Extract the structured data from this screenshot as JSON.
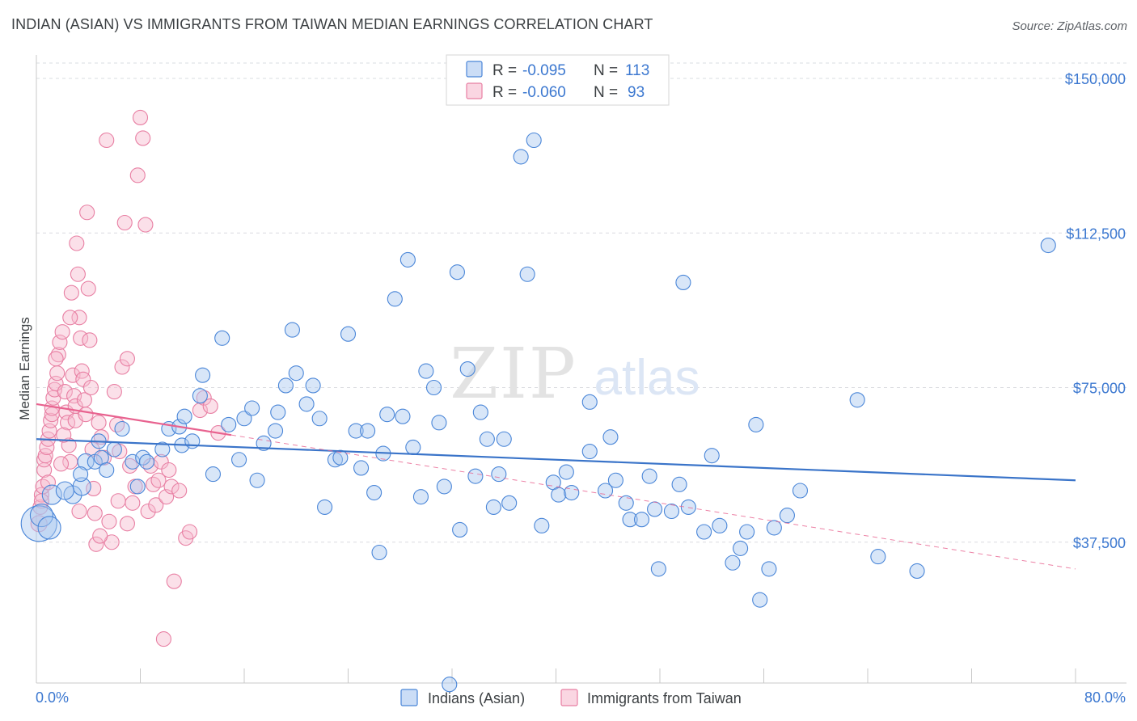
{
  "header": {
    "title": "INDIAN (ASIAN) VS IMMIGRANTS FROM TAIWAN MEDIAN EARNINGS CORRELATION CHART",
    "source": "Source: ZipAtlas.com"
  },
  "watermark": {
    "zip": "ZIP",
    "atlas": "atlas"
  },
  "colors": {
    "blue": "#4a86d8",
    "blue_fill": "rgba(168,199,240,0.45)",
    "blue_line": "#3a74c9",
    "pink": "#e87fa3",
    "pink_fill": "rgba(246,186,206,0.45)",
    "pink_line": "#e8628f",
    "grid": "#dadce0",
    "tick_text": "#3c78d0"
  },
  "chart_data": {
    "type": "scatter",
    "title": "INDIAN (ASIAN) VS IMMIGRANTS FROM TAIWAN MEDIAN EARNINGS CORRELATION CHART",
    "xlabel": "",
    "ylabel": "Median Earnings",
    "xlim": [
      0,
      80
    ],
    "ylim": [
      0,
      160000
    ],
    "x_tick_labels": [
      "0.0%",
      "80.0%"
    ],
    "y_ticks": [
      37500,
      75000,
      112500,
      150000
    ],
    "y_tick_labels": [
      "$37,500",
      "$75,000",
      "$112,500",
      "$150,000"
    ],
    "legend": {
      "position": "top-center",
      "rows": [
        {
          "r_label": "R = ",
          "r_value": "-0.095",
          "n_label": "N = ",
          "n_value": "113"
        },
        {
          "r_label": "R = ",
          "r_value": "-0.060",
          "n_label": "N = ",
          "n_value": "93"
        }
      ]
    },
    "bottom_legend": [
      "Indians (Asian)",
      "Immigrants from Taiwan"
    ],
    "series": [
      {
        "name": "Indians (Asian)",
        "trend": {
          "x": [
            0,
            80
          ],
          "y": [
            62500,
            52500
          ],
          "style": "solid"
        },
        "points": [
          [
            0.2,
            42000,
            22
          ],
          [
            0.4,
            44000,
            14
          ],
          [
            1.2,
            49000,
            12
          ],
          [
            2.8,
            49000,
            11
          ],
          [
            3.5,
            51000,
            11
          ],
          [
            3.8,
            57000,
            10
          ],
          [
            3.4,
            54000,
            9
          ],
          [
            4.5,
            57000,
            9
          ],
          [
            5.0,
            58000,
            9
          ],
          [
            4.8,
            62000,
            9
          ],
          [
            5.4,
            55000,
            9
          ],
          [
            6.6,
            65000,
            9
          ],
          [
            7.4,
            57000,
            9
          ],
          [
            8.2,
            58000,
            9
          ],
          [
            8.5,
            57000,
            9
          ],
          [
            7.8,
            51000,
            9
          ],
          [
            9.7,
            60000,
            9
          ],
          [
            10.2,
            65000,
            9
          ],
          [
            11.0,
            65500,
            9
          ],
          [
            11.4,
            68000,
            9
          ],
          [
            11.2,
            61000,
            9
          ],
          [
            12.0,
            62000,
            9
          ],
          [
            12.6,
            73000,
            9
          ],
          [
            12.8,
            78000,
            9
          ],
          [
            13.6,
            54000,
            9
          ],
          [
            14.3,
            87000,
            9
          ],
          [
            14.8,
            66000,
            9
          ],
          [
            15.6,
            57500,
            9
          ],
          [
            16.0,
            67500,
            9
          ],
          [
            16.6,
            70000,
            9
          ],
          [
            17.0,
            52500,
            9
          ],
          [
            17.5,
            61500,
            9
          ],
          [
            18.4,
            64500,
            9
          ],
          [
            18.6,
            69000,
            9
          ],
          [
            19.2,
            75500,
            9
          ],
          [
            19.7,
            89000,
            9
          ],
          [
            20.0,
            78500,
            9
          ],
          [
            20.8,
            71000,
            9
          ],
          [
            21.3,
            75500,
            9
          ],
          [
            21.8,
            67500,
            9
          ],
          [
            22.2,
            46000,
            9
          ],
          [
            23.0,
            57500,
            9
          ],
          [
            23.4,
            58000,
            9
          ],
          [
            24.0,
            88000,
            9
          ],
          [
            24.6,
            64500,
            9
          ],
          [
            25.0,
            55500,
            9
          ],
          [
            25.5,
            64500,
            9
          ],
          [
            26.0,
            49500,
            9
          ],
          [
            26.4,
            35000,
            9
          ],
          [
            26.7,
            59000,
            9
          ],
          [
            27.0,
            68500,
            9
          ],
          [
            27.6,
            96500,
            9
          ],
          [
            28.2,
            68000,
            9
          ],
          [
            28.6,
            106000,
            9
          ],
          [
            29.0,
            60500,
            9
          ],
          [
            29.6,
            48500,
            9
          ],
          [
            30.0,
            79000,
            9
          ],
          [
            30.6,
            75000,
            9
          ],
          [
            31.0,
            66500,
            9
          ],
          [
            31.4,
            51000,
            9
          ],
          [
            31.8,
            3000,
            9
          ],
          [
            32.4,
            103000,
            9
          ],
          [
            32.6,
            40500,
            9
          ],
          [
            33.2,
            79500,
            9
          ],
          [
            33.8,
            53500,
            9
          ],
          [
            34.2,
            69000,
            9
          ],
          [
            34.7,
            62500,
            9
          ],
          [
            35.2,
            46000,
            9
          ],
          [
            35.6,
            54000,
            9
          ],
          [
            36.0,
            62500,
            9
          ],
          [
            36.4,
            47000,
            9
          ],
          [
            37.3,
            131000,
            9
          ],
          [
            37.8,
            102500,
            9
          ],
          [
            38.3,
            135000,
            9
          ],
          [
            38.9,
            41500,
            9
          ],
          [
            39.8,
            52000,
            9
          ],
          [
            40.2,
            49000,
            9
          ],
          [
            40.8,
            54500,
            9
          ],
          [
            41.2,
            49500,
            9
          ],
          [
            42.6,
            59500,
            9
          ],
          [
            42.6,
            71500,
            9
          ],
          [
            43.8,
            50000,
            9
          ],
          [
            44.2,
            63000,
            9
          ],
          [
            44.6,
            52500,
            9
          ],
          [
            45.4,
            47000,
            9
          ],
          [
            45.7,
            43000,
            9
          ],
          [
            46.6,
            43000,
            9
          ],
          [
            47.2,
            53500,
            9
          ],
          [
            47.6,
            45500,
            9
          ],
          [
            47.9,
            31000,
            9
          ],
          [
            48.9,
            45000,
            9
          ],
          [
            49.5,
            51500,
            9
          ],
          [
            49.8,
            100500,
            9
          ],
          [
            50.2,
            46000,
            9
          ],
          [
            51.4,
            40000,
            9
          ],
          [
            52.0,
            58500,
            9
          ],
          [
            52.6,
            41500,
            9
          ],
          [
            53.6,
            32500,
            9
          ],
          [
            54.2,
            36000,
            9
          ],
          [
            54.7,
            40000,
            9
          ],
          [
            55.4,
            66000,
            9
          ],
          [
            55.7,
            23500,
            9
          ],
          [
            56.4,
            31000,
            9
          ],
          [
            56.8,
            41000,
            9
          ],
          [
            57.8,
            44000,
            9
          ],
          [
            58.8,
            50000,
            9
          ],
          [
            63.2,
            72000,
            9
          ],
          [
            64.8,
            34000,
            9
          ],
          [
            67.8,
            30500,
            9
          ],
          [
            77.9,
            109500,
            9
          ],
          [
            1.0,
            41000,
            14
          ],
          [
            2.2,
            50000,
            11
          ],
          [
            6.0,
            60000,
            9
          ]
        ]
      },
      {
        "name": "Immigrants from Taiwan",
        "trend": {
          "x": [
            0,
            15
          ],
          "y": [
            71000,
            63500
          ],
          "style": "solid",
          "dashed_x": [
            15,
            80
          ],
          "dashed_y": [
            63500,
            31000
          ]
        },
        "points": [
          [
            0.2,
            42000,
            10
          ],
          [
            0.3,
            46000,
            9
          ],
          [
            0.4,
            49000,
            9
          ],
          [
            0.5,
            51000,
            9
          ],
          [
            0.6,
            55000,
            9
          ],
          [
            0.6,
            57500,
            9
          ],
          [
            0.7,
            58500,
            9
          ],
          [
            0.8,
            60500,
            9
          ],
          [
            0.9,
            62500,
            9
          ],
          [
            1.0,
            64500,
            9
          ],
          [
            1.1,
            67000,
            9
          ],
          [
            1.2,
            68500,
            9
          ],
          [
            1.2,
            70000,
            9
          ],
          [
            1.3,
            72500,
            9
          ],
          [
            1.4,
            74500,
            9
          ],
          [
            1.5,
            76000,
            9
          ],
          [
            1.6,
            78500,
            9
          ],
          [
            1.7,
            83000,
            9
          ],
          [
            1.8,
            86000,
            9
          ],
          [
            2.0,
            88500,
            9
          ],
          [
            2.2,
            74000,
            9
          ],
          [
            2.3,
            69000,
            9
          ],
          [
            2.4,
            66500,
            9
          ],
          [
            2.5,
            61000,
            9
          ],
          [
            2.6,
            57000,
            9
          ],
          [
            2.7,
            98000,
            9
          ],
          [
            2.8,
            78000,
            9
          ],
          [
            2.9,
            73000,
            9
          ],
          [
            3.0,
            70500,
            9
          ],
          [
            3.0,
            67000,
            9
          ],
          [
            3.1,
            110000,
            9
          ],
          [
            3.2,
            102500,
            9
          ],
          [
            3.3,
            92000,
            9
          ],
          [
            3.4,
            87000,
            9
          ],
          [
            3.5,
            79000,
            9
          ],
          [
            3.6,
            77000,
            9
          ],
          [
            3.7,
            72000,
            9
          ],
          [
            3.8,
            68500,
            9
          ],
          [
            3.9,
            117500,
            9
          ],
          [
            4.0,
            99000,
            9
          ],
          [
            4.1,
            86500,
            9
          ],
          [
            4.2,
            75000,
            9
          ],
          [
            4.3,
            60000,
            9
          ],
          [
            4.4,
            50500,
            9
          ],
          [
            4.5,
            44500,
            9
          ],
          [
            4.6,
            37000,
            9
          ],
          [
            4.8,
            66500,
            9
          ],
          [
            5.0,
            63000,
            9
          ],
          [
            5.2,
            58000,
            9
          ],
          [
            5.4,
            135000,
            9
          ],
          [
            5.6,
            42500,
            9
          ],
          [
            5.8,
            37500,
            9
          ],
          [
            6.0,
            74000,
            9
          ],
          [
            6.2,
            66000,
            9
          ],
          [
            6.4,
            59500,
            9
          ],
          [
            6.6,
            80000,
            9
          ],
          [
            6.8,
            115000,
            9
          ],
          [
            7.0,
            82000,
            9
          ],
          [
            7.2,
            56000,
            9
          ],
          [
            7.4,
            47000,
            9
          ],
          [
            7.6,
            51000,
            9
          ],
          [
            7.8,
            126500,
            9
          ],
          [
            8.0,
            140500,
            9
          ],
          [
            8.2,
            135500,
            9
          ],
          [
            8.4,
            114500,
            9
          ],
          [
            8.6,
            45000,
            9
          ],
          [
            8.8,
            56000,
            9
          ],
          [
            9.0,
            51500,
            9
          ],
          [
            9.2,
            46500,
            9
          ],
          [
            9.4,
            52500,
            9
          ],
          [
            9.6,
            57000,
            9
          ],
          [
            9.8,
            14000,
            9
          ],
          [
            10.0,
            48500,
            9
          ],
          [
            10.2,
            55000,
            9
          ],
          [
            10.4,
            51000,
            9
          ],
          [
            10.6,
            28000,
            9
          ],
          [
            11.0,
            50000,
            9
          ],
          [
            11.5,
            38500,
            9
          ],
          [
            11.8,
            40000,
            9
          ],
          [
            12.6,
            69500,
            9
          ],
          [
            12.9,
            72500,
            9
          ],
          [
            13.4,
            70500,
            9
          ],
          [
            14.0,
            64000,
            9
          ],
          [
            1.5,
            82000,
            9
          ],
          [
            2.1,
            63500,
            9
          ],
          [
            0.9,
            52000,
            9
          ],
          [
            1.9,
            56500,
            9
          ],
          [
            3.3,
            45000,
            9
          ],
          [
            4.9,
            39000,
            9
          ],
          [
            6.3,
            47500,
            9
          ],
          [
            7.0,
            42000,
            9
          ],
          [
            0.4,
            47500,
            9
          ],
          [
            2.6,
            92000,
            9
          ]
        ]
      }
    ]
  }
}
